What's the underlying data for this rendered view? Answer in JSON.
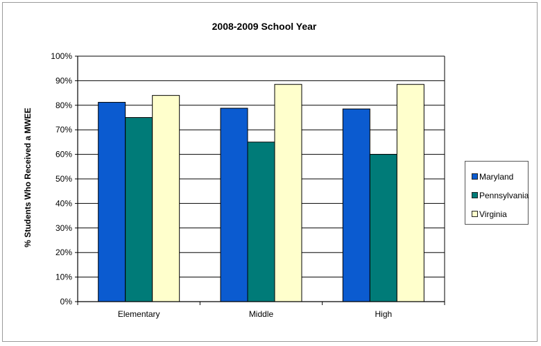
{
  "chart_data": {
    "type": "bar",
    "title": "2008-2009 School Year",
    "xlabel": "",
    "ylabel": "% Students Who Received a MWEE",
    "categories": [
      "Elementary",
      "Middle",
      "High"
    ],
    "ylim": [
      0,
      100
    ],
    "yticks": [
      "0%",
      "10%",
      "20%",
      "30%",
      "40%",
      "50%",
      "60%",
      "70%",
      "80%",
      "90%",
      "100%"
    ],
    "grid": true,
    "legend_position": "right",
    "series": [
      {
        "name": "Maryland",
        "color": "#0b5bd0",
        "values": [
          81.2,
          78.8,
          78.5
        ]
      },
      {
        "name": "Pennsylvania",
        "color": "#007b78",
        "values": [
          75,
          65,
          60
        ]
      },
      {
        "name": "Virginia",
        "color": "#ffffcc",
        "values": [
          84,
          88.5,
          88.5
        ]
      }
    ]
  }
}
